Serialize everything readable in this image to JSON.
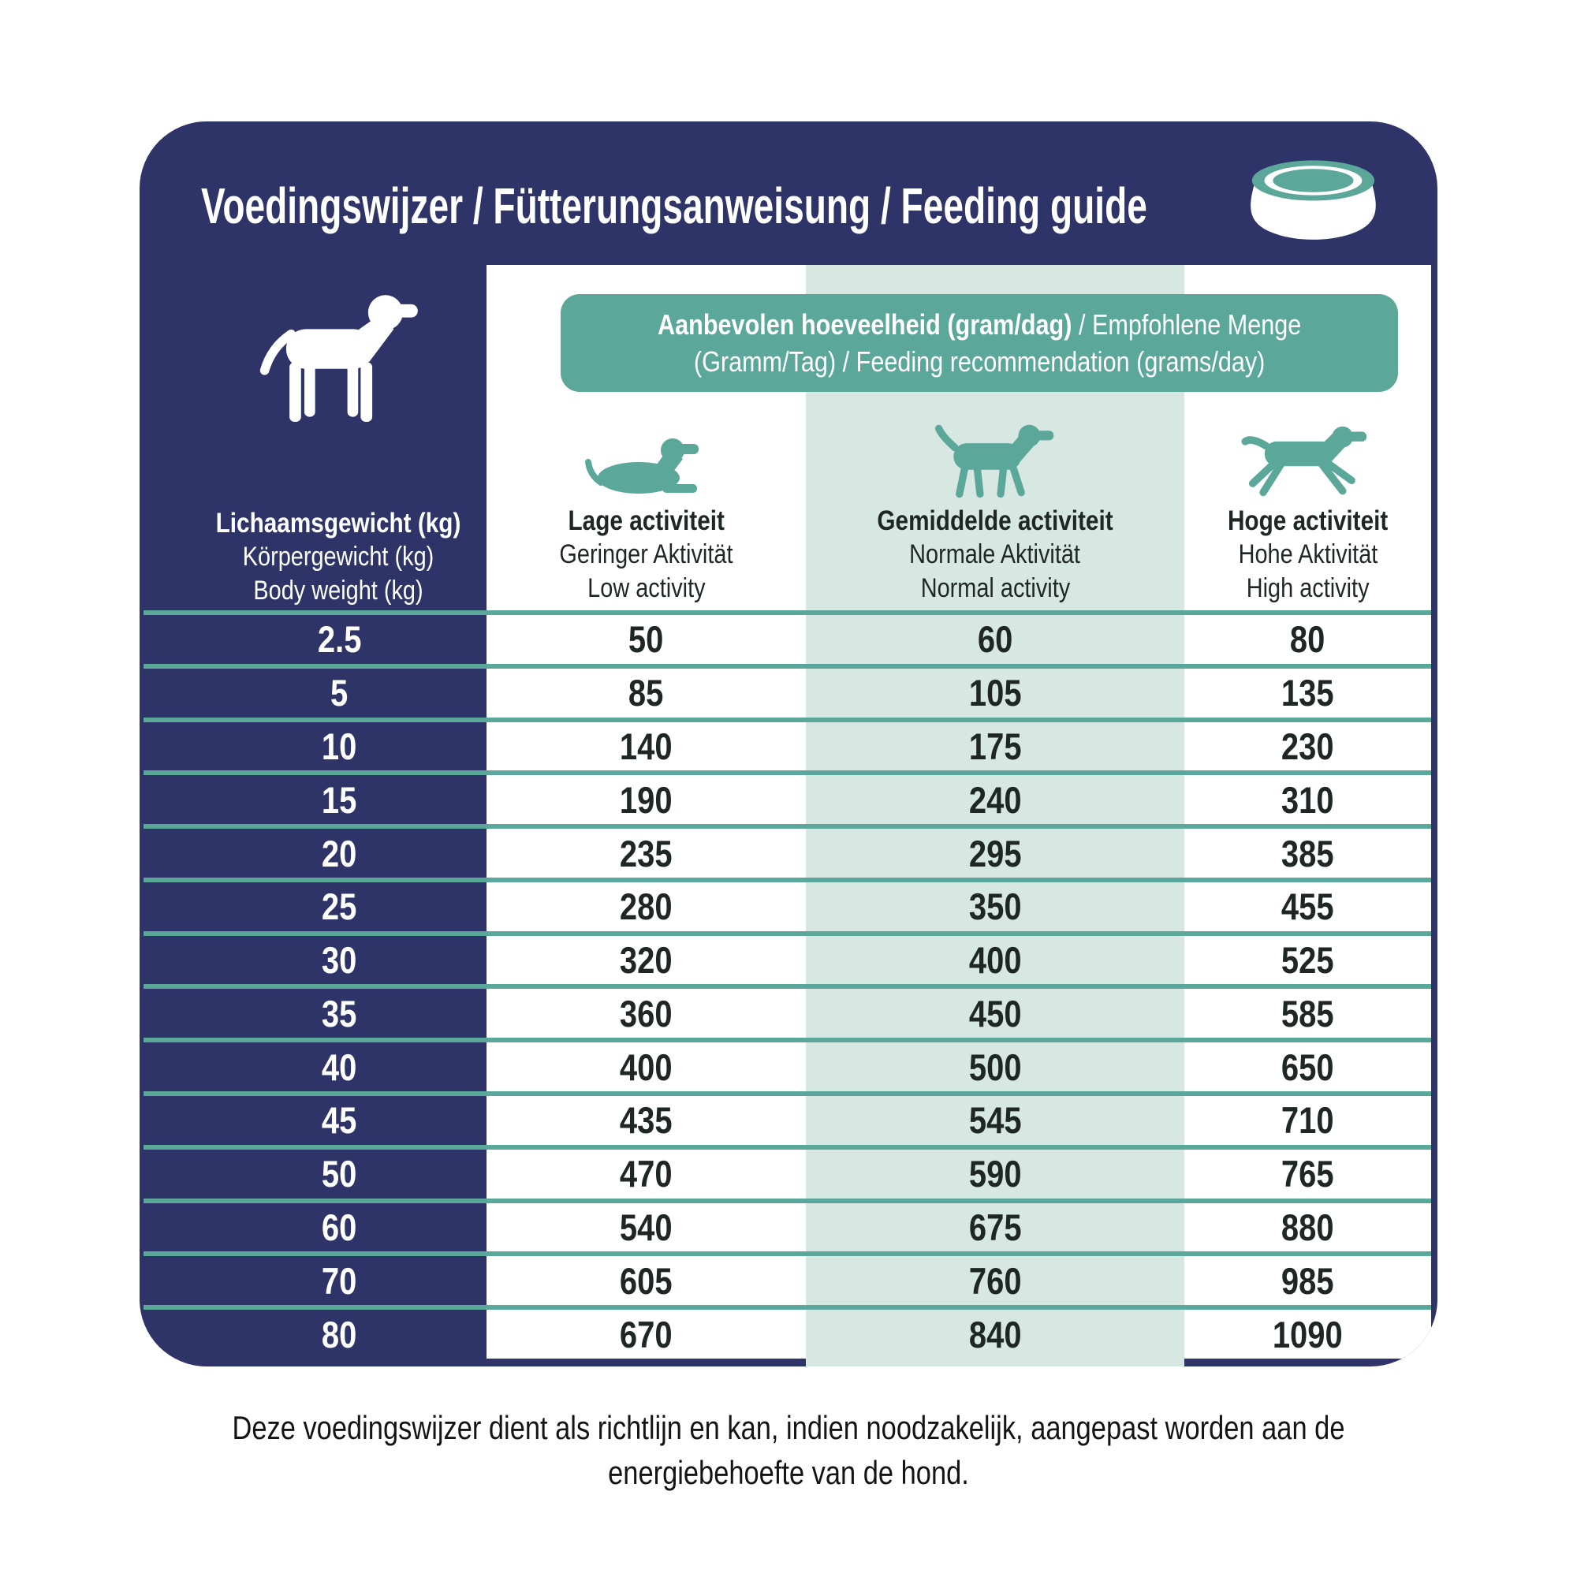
{
  "header": {
    "title": "Voedingswijzer / Fütterungsanweisung / Feeding guide",
    "bowl_icon": "dog-bowl-icon"
  },
  "colors": {
    "navy": "#2E3467",
    "teal": "#5BA79A",
    "mint": "#D7E7E1",
    "white": "#FFFFFF",
    "dark_text": "#1F2725"
  },
  "left_column": {
    "dog_icon": "standing-dog-icon",
    "header": {
      "line1": "Lichaamsgewicht (kg)",
      "line2": "Körpergewicht (kg)",
      "line3": "Body weight (kg)"
    }
  },
  "banner": {
    "line1_bold": "Aanbevolen hoeveelheid (gram/dag)",
    "line1_rest": " / Empfohlene Menge",
    "line2": "(Gramm/Tag) / Feeding recommendation (grams/day)"
  },
  "activity_columns": [
    {
      "icon": "lying-dog-icon",
      "line1": "Lage activiteit",
      "line2": "Geringer Aktivität",
      "line3": "Low activity"
    },
    {
      "icon": "walking-dog-icon",
      "line1": "Gemiddelde activiteit",
      "line2": "Normale Aktivität",
      "line3": "Normal activity"
    },
    {
      "icon": "running-dog-icon",
      "line1": "Hoge activiteit",
      "line2": "Hohe Aktivität",
      "line3": "High activity"
    }
  ],
  "table": {
    "rows": [
      {
        "weight": "2.5",
        "low": "50",
        "normal": "60",
        "high": "80"
      },
      {
        "weight": "5",
        "low": "85",
        "normal": "105",
        "high": "135"
      },
      {
        "weight": "10",
        "low": "140",
        "normal": "175",
        "high": "230"
      },
      {
        "weight": "15",
        "low": "190",
        "normal": "240",
        "high": "310"
      },
      {
        "weight": "20",
        "low": "235",
        "normal": "295",
        "high": "385"
      },
      {
        "weight": "25",
        "low": "280",
        "normal": "350",
        "high": "455"
      },
      {
        "weight": "30",
        "low": "320",
        "normal": "400",
        "high": "525"
      },
      {
        "weight": "35",
        "low": "360",
        "normal": "450",
        "high": "585"
      },
      {
        "weight": "40",
        "low": "400",
        "normal": "500",
        "high": "650"
      },
      {
        "weight": "45",
        "low": "435",
        "normal": "545",
        "high": "710"
      },
      {
        "weight": "50",
        "low": "470",
        "normal": "590",
        "high": "765"
      },
      {
        "weight": "60",
        "low": "540",
        "normal": "675",
        "high": "880"
      },
      {
        "weight": "70",
        "low": "605",
        "normal": "760",
        "high": "985"
      },
      {
        "weight": "80",
        "low": "670",
        "normal": "840",
        "high": "1090"
      }
    ]
  },
  "footer": {
    "line1": "Deze voedingswijzer dient als richtlijn en kan, indien noodzakelijk, aangepast worden aan de",
    "line2": "energiebehoefte van de hond."
  }
}
